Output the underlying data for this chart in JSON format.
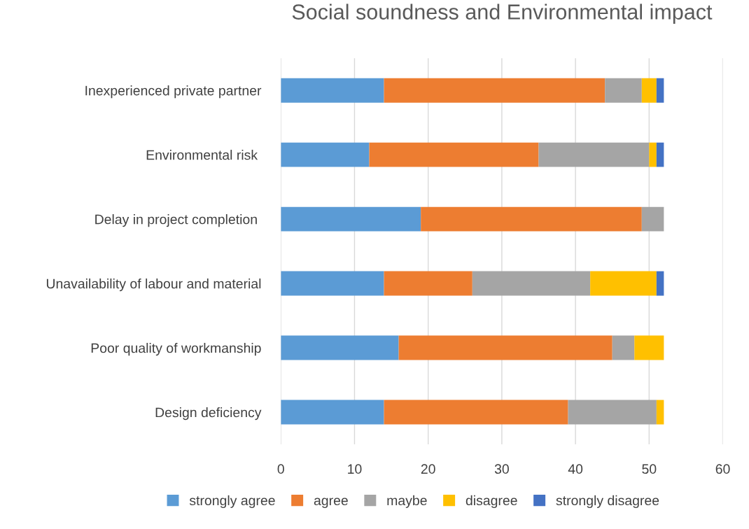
{
  "chart_data": {
    "type": "bar",
    "title": "Social soundness and Environmental impact",
    "orientation": "horizontal",
    "stacked": true,
    "categories": [
      "Inexperienced private partner",
      "Environmental risk ",
      "Delay in project completion ",
      "Unavailability of labour and material",
      "Poor quality of workmanship",
      "Design deficiency"
    ],
    "series": [
      {
        "name": "strongly agree",
        "color": "#5b9bd5",
        "values": [
          14,
          12,
          19,
          14,
          16,
          14
        ]
      },
      {
        "name": "agree",
        "color": "#ed7d31",
        "values": [
          30,
          23,
          30,
          12,
          29,
          25
        ]
      },
      {
        "name": "maybe",
        "color": "#a5a5a5",
        "values": [
          5,
          15,
          3,
          16,
          3,
          12
        ]
      },
      {
        "name": "disagree",
        "color": "#ffc000",
        "values": [
          2,
          1,
          null,
          9,
          4,
          1
        ]
      },
      {
        "name": "strongly disagree",
        "color": "#4472c4",
        "values": [
          1,
          1,
          null,
          1,
          null,
          null
        ]
      }
    ],
    "xlim": [
      0,
      60
    ],
    "xticks": [
      0,
      10,
      20,
      30,
      40,
      50,
      60
    ],
    "grid": "x",
    "legend": "bottom"
  }
}
